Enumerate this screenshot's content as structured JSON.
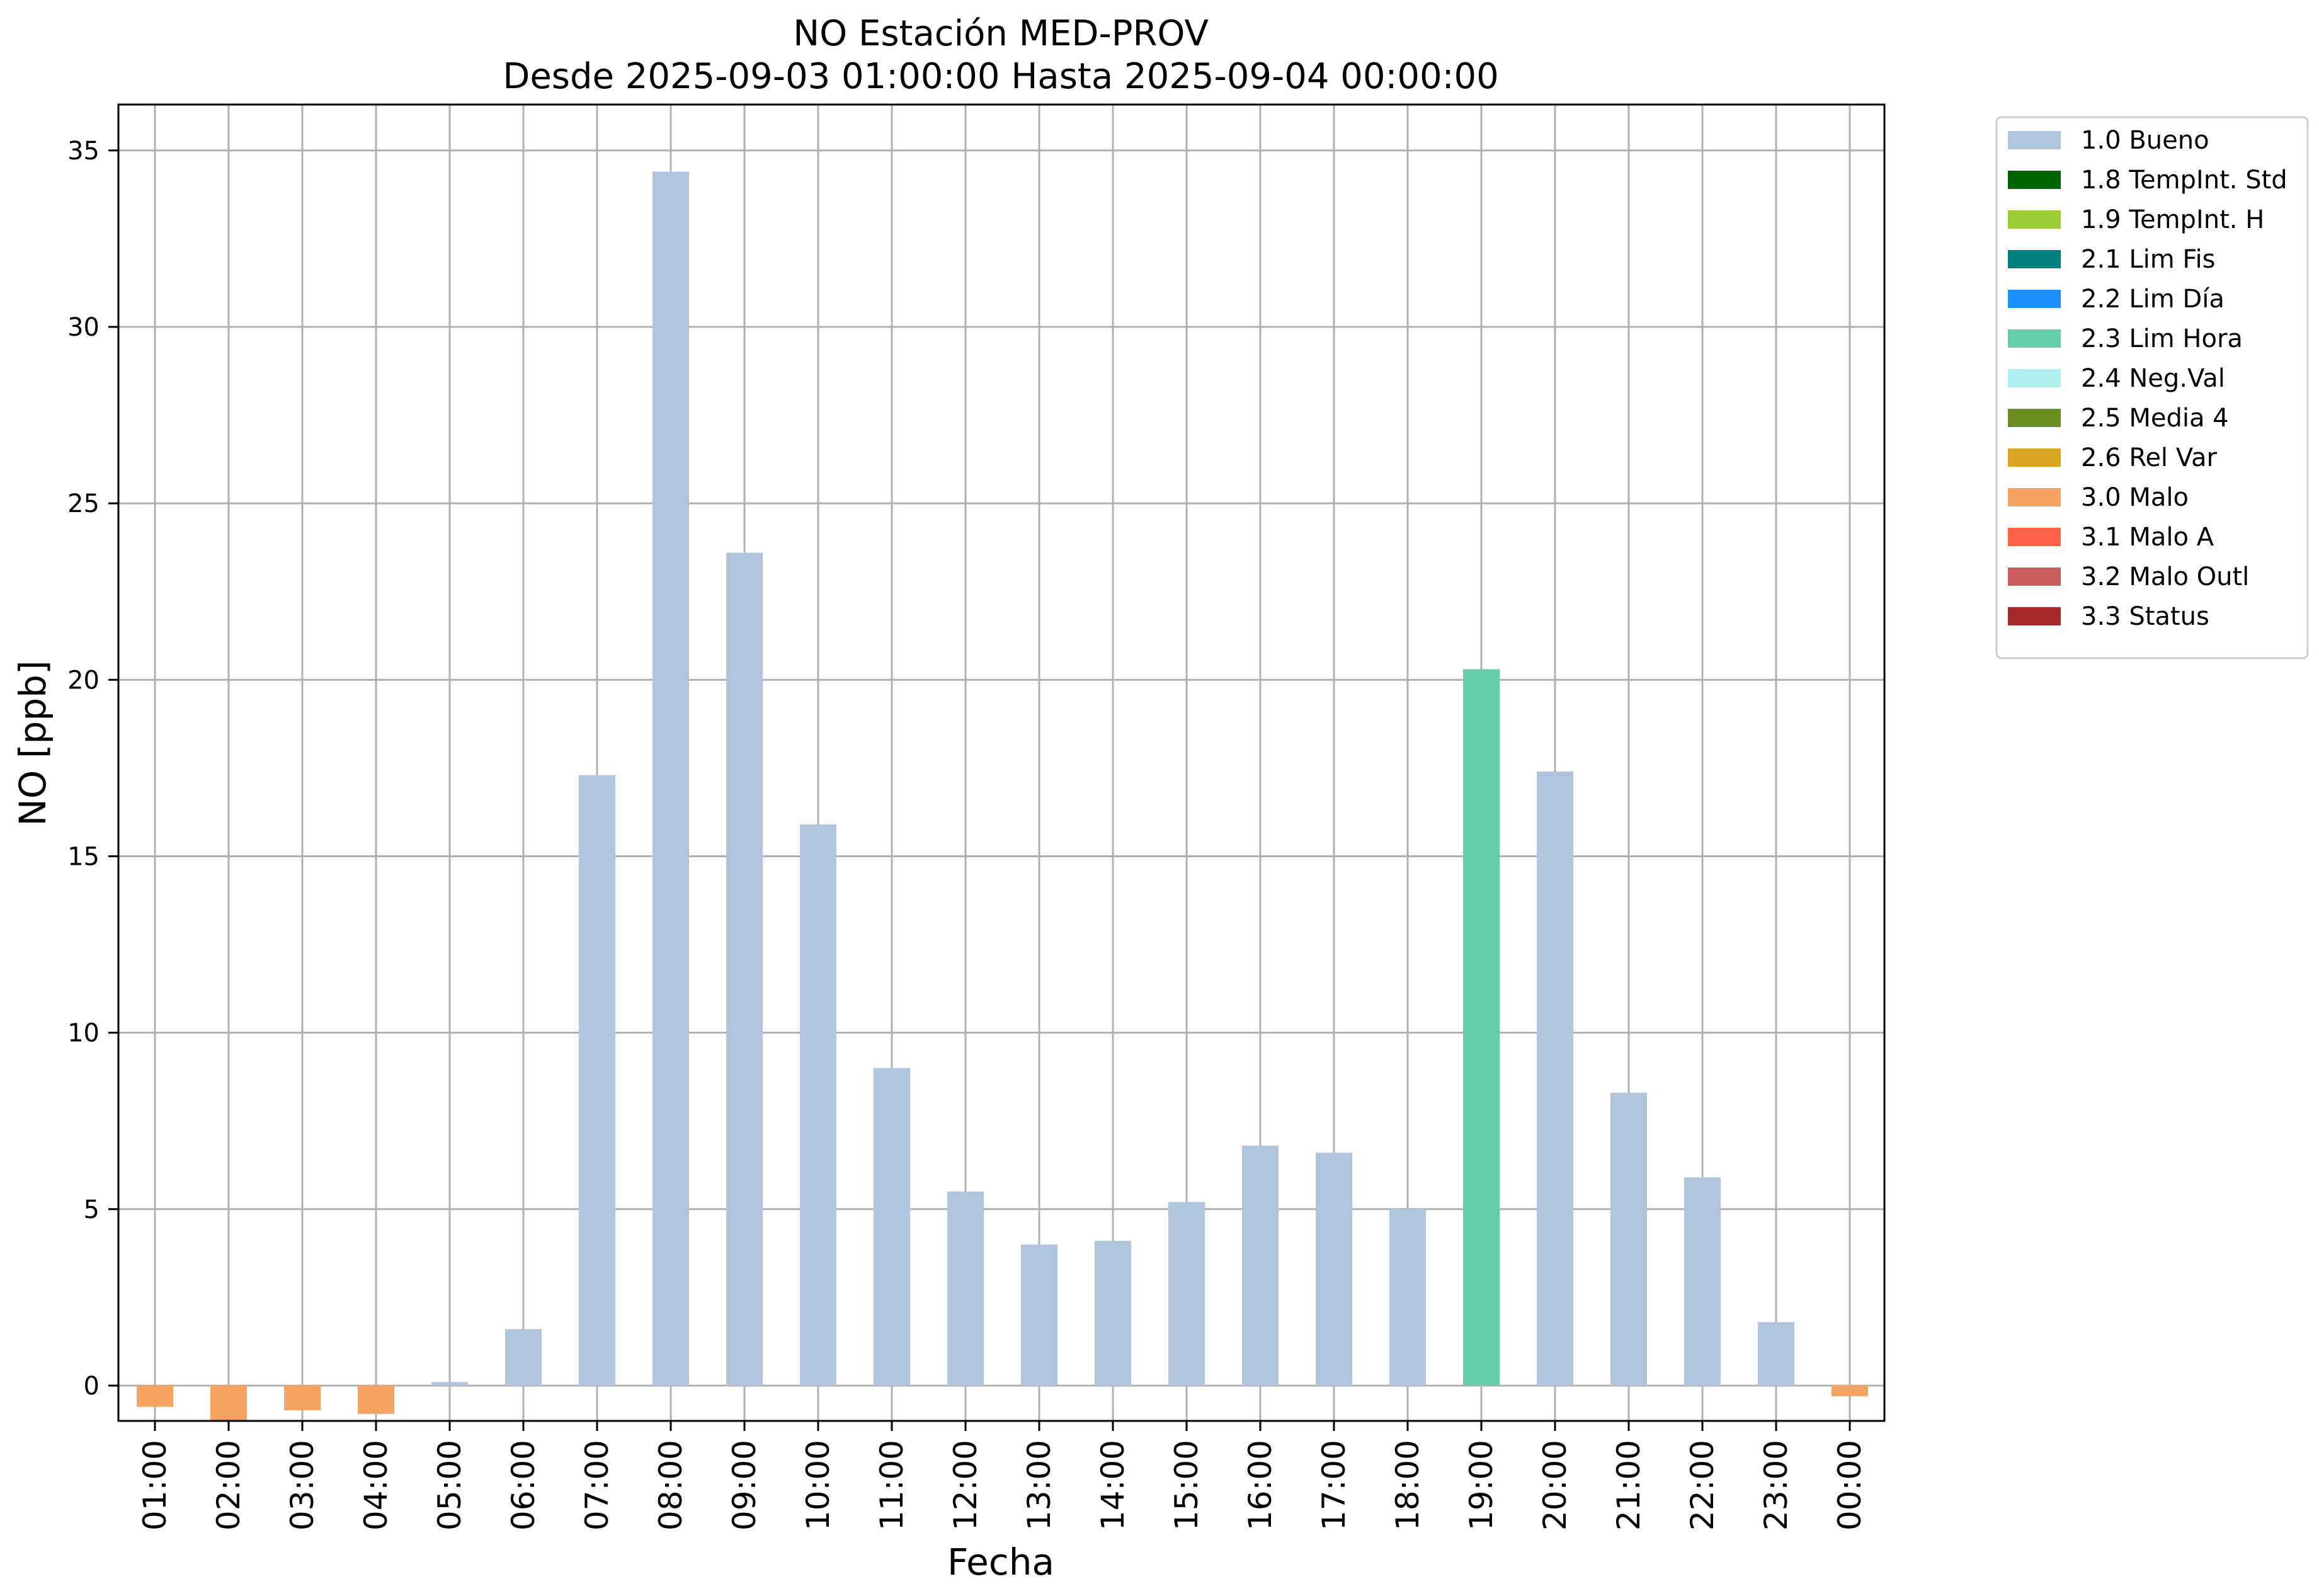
{
  "chart_data": {
    "type": "bar",
    "title": "NO Estación MED-PROV",
    "subtitle": "Desde 2025-09-03 01:00:00 Hasta 2025-09-04 00:00:00",
    "xlabel": "Fecha",
    "ylabel": "NO [ppb]",
    "categories": [
      "01:00",
      "02:00",
      "03:00",
      "04:00",
      "05:00",
      "06:00",
      "07:00",
      "08:00",
      "09:00",
      "10:00",
      "11:00",
      "12:00",
      "13:00",
      "14:00",
      "15:00",
      "16:00",
      "17:00",
      "18:00",
      "19:00",
      "20:00",
      "21:00",
      "22:00",
      "23:00",
      "00:00"
    ],
    "values": [
      -0.6,
      -1.0,
      -0.7,
      -0.8,
      0.1,
      1.6,
      17.3,
      34.4,
      23.6,
      15.9,
      9.0,
      5.5,
      4.0,
      4.1,
      5.2,
      6.8,
      6.6,
      5.0,
      20.3,
      17.4,
      8.3,
      5.9,
      1.8,
      -0.3
    ],
    "flags": [
      "3.0 Malo",
      "3.0 Malo",
      "3.0 Malo",
      "3.0 Malo",
      "1.0 Bueno",
      "1.0 Bueno",
      "1.0 Bueno",
      "1.0 Bueno",
      "1.0 Bueno",
      "1.0 Bueno",
      "1.0 Bueno",
      "1.0 Bueno",
      "1.0 Bueno",
      "1.0 Bueno",
      "1.0 Bueno",
      "1.0 Bueno",
      "1.0 Bueno",
      "1.0 Bueno",
      "2.3 Lim Hora",
      "1.0 Bueno",
      "1.0 Bueno",
      "1.0 Bueno",
      "1.0 Bueno",
      "3.0 Malo"
    ],
    "ylim": [
      -1.0,
      36.3
    ],
    "yticks": [
      0,
      5,
      10,
      15,
      20,
      25,
      30,
      35
    ],
    "grid": true,
    "legend_position": "outside-top-right",
    "legend": [
      {
        "name": "1.0 Bueno",
        "color": "#b0c4de"
      },
      {
        "name": "1.8 TempInt. Std",
        "color": "#006400"
      },
      {
        "name": "1.9 TempInt. H",
        "color": "#9acd32"
      },
      {
        "name": "2.1 Lim Fis",
        "color": "#008080"
      },
      {
        "name": "2.2 Lim Día",
        "color": "#1e90ff"
      },
      {
        "name": "2.3 Lim Hora",
        "color": "#66cdaa"
      },
      {
        "name": "2.4 Neg.Val",
        "color": "#afeeee"
      },
      {
        "name": "2.5 Media 4",
        "color": "#6b8e23"
      },
      {
        "name": "2.6 Rel Var",
        "color": "#daa520"
      },
      {
        "name": "3.0 Malo",
        "color": "#f4a460"
      },
      {
        "name": "3.1 Malo A",
        "color": "#ff6347"
      },
      {
        "name": "3.2 Malo Outl",
        "color": "#cd5c5c"
      },
      {
        "name": "3.3 Status",
        "color": "#a52a2a"
      }
    ]
  }
}
